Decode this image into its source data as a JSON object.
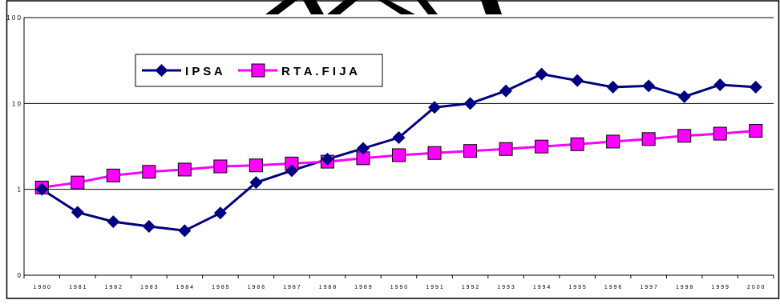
{
  "chart_data": {
    "type": "line",
    "title": "",
    "xlabel": "",
    "ylabel": "",
    "y_scale": "log",
    "ylim": [
      0.1,
      100
    ],
    "y_ticks": [
      {
        "value": 0.1,
        "label": "0"
      },
      {
        "value": 1,
        "label": "1"
      },
      {
        "value": 10,
        "label": "1 0"
      },
      {
        "value": 100,
        "label": "1 0 0"
      }
    ],
    "categories": [
      "1 9 8 0",
      "1 9 8 1",
      "1 9 8 2",
      "1 9 8 3",
      "1 9 8 4",
      "1 9 8 5",
      "1 9 8 6",
      "1 9 8 7",
      "1 9 8 8",
      "1 9 8 9",
      "1 9 9 0",
      "1 9 9 1",
      "1 9 9 2",
      "1 9 9 3",
      "1 9 9 4",
      "1 9 9 5",
      "1 9 9 6",
      "1 9 9 7",
      "1 9 9 8",
      "1 9 9 9",
      "2 0 0 0"
    ],
    "grid": "horizontal",
    "legend_position": "top-left",
    "series": [
      {
        "name": "I P S A",
        "color": "#000080",
        "marker": "diamond",
        "values": [
          1.0,
          0.54,
          0.42,
          0.37,
          0.33,
          0.53,
          1.2,
          1.65,
          2.25,
          3.0,
          4.0,
          9.0,
          10.0,
          14.0,
          22.0,
          18.5,
          15.5,
          16.0,
          12.0,
          16.5,
          15.5
        ]
      },
      {
        "name": "R T A . F I J A",
        "color": "#ff00ff",
        "marker": "square",
        "values": [
          1.05,
          1.2,
          1.45,
          1.6,
          1.7,
          1.85,
          1.9,
          2.0,
          2.1,
          2.3,
          2.5,
          2.65,
          2.8,
          2.95,
          3.15,
          3.35,
          3.6,
          3.85,
          4.2,
          4.45,
          4.8
        ]
      }
    ]
  }
}
